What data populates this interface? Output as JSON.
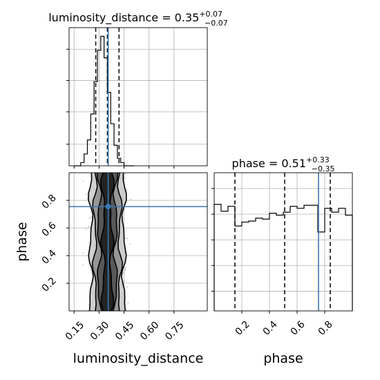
{
  "colors": {
    "truth": "#3a76b0",
    "hist": "#000000",
    "grid": "#b0b0b0",
    "scatter": "#808080"
  },
  "chart_data": [
    {
      "type": "histogram",
      "panel": "luminosity_distance-marginal",
      "title": {
        "main": "luminosity_distance = 0.35",
        "sup": "+0.07",
        "sub": "−0.07"
      },
      "param": "luminosity_distance",
      "bin_edges": [
        0.15,
        0.17,
        0.19,
        0.21,
        0.23,
        0.25,
        0.27,
        0.29,
        0.31,
        0.33,
        0.35,
        0.37,
        0.39,
        0.41,
        0.43,
        0.45,
        0.47,
        0.49,
        0.51
      ],
      "counts": [
        0,
        0,
        3,
        11,
        24,
        48,
        78,
        107,
        120,
        100,
        68,
        39,
        19,
        7,
        3,
        0,
        0,
        0
      ],
      "quantiles": [
        0.28,
        0.35,
        0.42
      ],
      "truth": 0.355,
      "xlim": [
        0.12,
        0.95
      ],
      "ylim": [
        0,
        128
      ],
      "yticks": [
        20,
        50,
        79,
        108
      ],
      "grid": true
    },
    {
      "type": "histogram",
      "panel": "phase-marginal",
      "title": {
        "main": "phase = 0.51",
        "sup": "+0.33",
        "sub": "−0.35"
      },
      "param": "phase",
      "bin_edges": [
        0.0,
        0.05,
        0.1,
        0.15,
        0.2,
        0.25,
        0.3,
        0.35,
        0.4,
        0.45,
        0.5,
        0.55,
        0.6,
        0.65,
        0.7,
        0.75,
        0.8,
        0.85,
        0.9,
        0.95,
        1.0
      ],
      "counts": [
        108,
        101,
        106,
        86,
        90,
        91,
        94,
        93,
        99,
        97,
        100,
        106,
        104,
        107,
        107,
        80,
        104,
        100,
        104,
        97
      ],
      "quantiles": [
        0.15,
        0.51,
        0.84
      ],
      "truth": 0.755,
      "xlim": [
        0.0,
        1.0
      ],
      "ylim": [
        0,
        140
      ],
      "yticks": [
        20,
        46,
        72,
        98,
        124
      ],
      "grid": true
    },
    {
      "type": "scatter",
      "panel": "2d-contour",
      "xlabel": "luminosity_distance",
      "ylabel": "phase",
      "xlim": [
        0.12,
        0.95
      ],
      "ylim": [
        0.0,
        1.0
      ],
      "xticks": [
        0.15,
        0.3,
        0.45,
        0.6,
        0.75
      ],
      "xtick_labels": [
        "0.15",
        "0.30",
        "0.45",
        "0.60",
        "0.75"
      ],
      "yticks": [
        0.2,
        0.4,
        0.6,
        0.8
      ],
      "ytick_labels": [
        "0.2",
        "0.4",
        "0.6",
        "0.8"
      ],
      "truth": {
        "x": 0.355,
        "y": 0.755
      },
      "x_center": 0.35,
      "x_sigma": 0.05,
      "contour_x_halfwidths": [
        0.025,
        0.05,
        0.075,
        0.1
      ],
      "grid": true
    },
    {
      "type": "axis",
      "panel": "phase-xaxis",
      "xlabel": "phase",
      "xticks": [
        0.2,
        0.4,
        0.6,
        0.8
      ],
      "xtick_labels": [
        "0.2",
        "0.4",
        "0.6",
        "0.8"
      ]
    }
  ]
}
